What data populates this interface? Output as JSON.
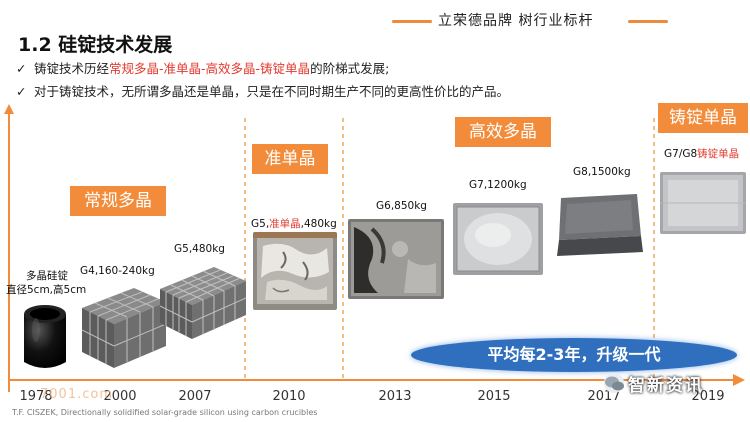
{
  "brand": {
    "text": "立荣德品牌   树行业标杆"
  },
  "title": "1.2 硅锭技术发展",
  "bullets": [
    {
      "pre": "铸锭技术历经",
      "hl": "常规多晶-准单晶-高效多晶-铸锭单晶",
      "post": "的阶梯式发展;"
    },
    {
      "pre": "对于铸锭技术，无所谓多晶还是单晶，只是在不同时期生产不同的更高性价比的产品。",
      "hl": "",
      "post": ""
    }
  ],
  "eras": [
    "常规多晶",
    "准单晶",
    "高效多晶",
    "铸锭单晶"
  ],
  "items": [
    {
      "label_line1": "多晶硅锭",
      "label_line2": "直径5cm,高5cm"
    },
    {
      "label": "G4,160-240kg"
    },
    {
      "label": "G5,480kg"
    },
    {
      "pre": "G5,",
      "hl": "准单晶",
      "post": ",480kg"
    },
    {
      "label": "G6,850kg"
    },
    {
      "label": "G7,1200kg"
    },
    {
      "label": "G8,1500kg"
    },
    {
      "pre": "G7/G8",
      "hl": "铸锭单晶",
      "post": ""
    }
  ],
  "years": [
    "1978",
    "2000",
    "2007",
    "2010",
    "2013",
    "2015",
    "2017",
    "2019"
  ],
  "summary": "平均每2-3年，升级一代",
  "watermark": "7001.com",
  "reference": "T.F. CISZEK, Directionally solidified solar-grade silicon using carbon crucibles",
  "logo_text": "智新资讯",
  "colors": {
    "accent": "#f28c3a",
    "highlight": "#e23a2e",
    "pill": "#2f6fbe",
    "axis": "#f28c3a"
  }
}
